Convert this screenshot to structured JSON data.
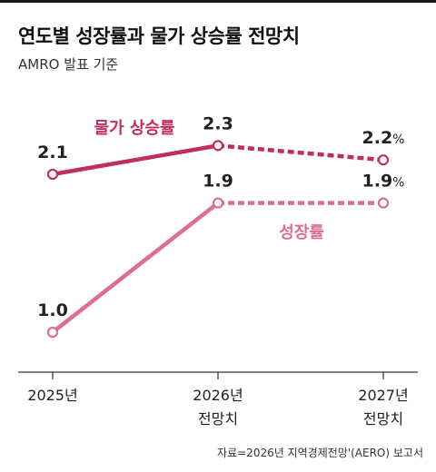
{
  "header": {
    "title": "연도별 성장률과 물가 상승률 전망치",
    "subtitle": "AMRO 발표 기준"
  },
  "source": "자료=2026년 지역경제전망'(AERO) 보고서",
  "colors": {
    "inflation": "#c12e5c",
    "growth": "#dd6e90",
    "axis": "#333333"
  },
  "chart_data": {
    "type": "line",
    "categories": [
      [
        "2025년"
      ],
      [
        "2026년",
        "전망치"
      ],
      [
        "2027년",
        "전망치"
      ]
    ],
    "ylim": [
      0,
      3.3
    ],
    "grid": false,
    "projected_from_index": 1,
    "series": [
      {
        "name": "물가 상승률",
        "values": [
          2.1,
          2.3,
          2.2
        ],
        "labels": [
          "2.1",
          "2.3",
          "2.2"
        ],
        "unit_last": "%"
      },
      {
        "name": "성장률",
        "values": [
          1.0,
          1.9,
          1.9
        ],
        "labels": [
          "1.0",
          "1.9",
          "1.9"
        ],
        "unit_last": "%"
      }
    ]
  }
}
